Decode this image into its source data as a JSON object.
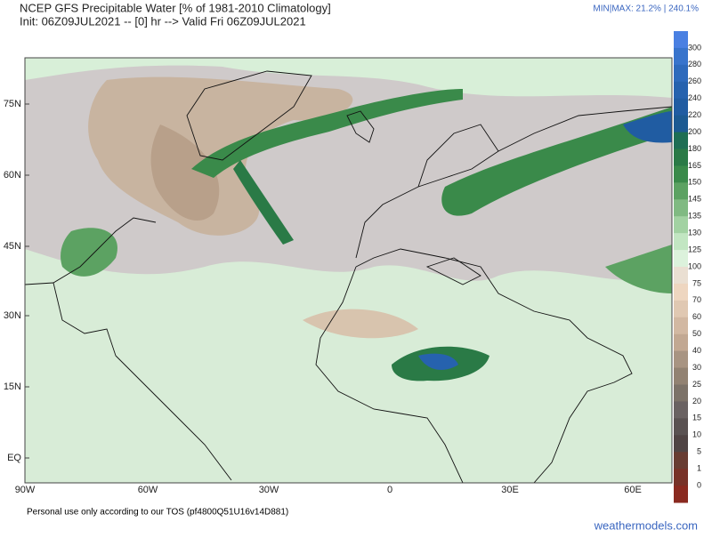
{
  "header": {
    "title": "NCEP GFS Precipitable Water [% of 1981-2010 Climatology]",
    "subtitle": "Init: 06Z09JUL2021 -- [0] hr --> Valid Fri 06Z09JUL2021",
    "minmax": "MIN|MAX: 21.2% | 240.1%"
  },
  "map": {
    "lat_labels": [
      "75N",
      "60N",
      "45N",
      "30N",
      "15N",
      "EQ"
    ],
    "lon_labels": [
      "90W",
      "60W",
      "30W",
      "0",
      "30E",
      "60E"
    ]
  },
  "colorbar": {
    "levels": [
      300,
      280,
      260,
      240,
      220,
      200,
      180,
      165,
      150,
      145,
      135,
      130,
      125,
      100,
      75,
      70,
      60,
      50,
      40,
      30,
      25,
      20,
      15,
      10,
      5,
      1,
      0
    ],
    "colors": [
      "#4a80e2",
      "#3874cc",
      "#2e6abc",
      "#2662ae",
      "#205ca2",
      "#1c5a92",
      "#1e6e54",
      "#2a7a46",
      "#3a8a4a",
      "#5ca262",
      "#80ba82",
      "#a2d2a2",
      "#c2e6c2",
      "#dcf2dc",
      "#eadfd2",
      "#eed6c0",
      "#e0c8b2",
      "#d2b8a2",
      "#c2a892",
      "#a89482",
      "#928272",
      "#7c7268",
      "#6a6262",
      "#5a5252",
      "#504444",
      "#683c32",
      "#783228",
      "#8a2a20"
    ]
  },
  "footer": {
    "note": "Personal use only according to our TOS (pf4800Q51U16v14D881)",
    "brand": "weathermodels.com"
  }
}
